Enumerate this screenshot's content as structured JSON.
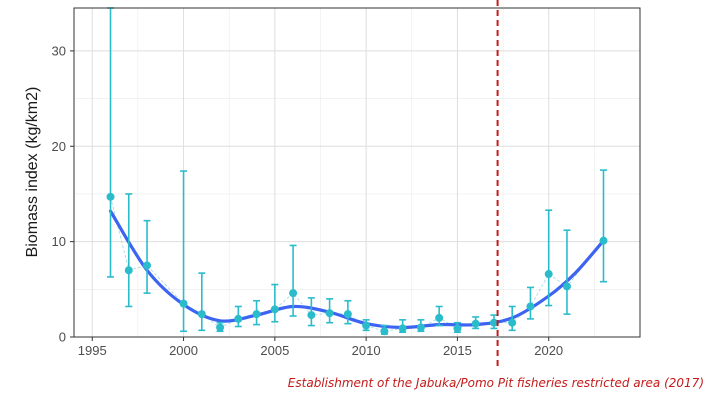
{
  "chart_data": {
    "type": "scatter",
    "ylabel": "Biomass index (kg/km2)",
    "xlabel": "",
    "title": "",
    "xlim": [
      1994,
      2025
    ],
    "ylim": [
      0,
      34.5
    ],
    "x_ticks": [
      1995,
      2000,
      2005,
      2010,
      2015,
      2020
    ],
    "y_ticks": [
      0,
      10,
      20,
      30
    ],
    "grid": true,
    "series": [
      {
        "style": "points-with-error-bars",
        "x": [
          1996,
          1997,
          1998,
          2000,
          2001,
          2002,
          2003,
          2004,
          2005,
          2006,
          2007,
          2008,
          2009,
          2010,
          2011,
          2012,
          2013,
          2014,
          2015,
          2016,
          2017,
          2018,
          2019,
          2020,
          2021,
          2023
        ],
        "y": [
          14.7,
          7.0,
          7.5,
          3.5,
          2.4,
          1.0,
          1.9,
          2.4,
          2.9,
          4.6,
          2.3,
          2.5,
          2.4,
          1.2,
          0.6,
          0.9,
          1.0,
          2.0,
          0.9,
          1.4,
          1.5,
          1.5,
          3.2,
          6.6,
          5.3,
          10.1
        ],
        "lower": [
          6.3,
          3.2,
          4.6,
          0.6,
          0.7,
          0.6,
          1.1,
          1.3,
          1.6,
          2.2,
          1.2,
          1.5,
          1.4,
          0.7,
          0.3,
          0.5,
          0.6,
          1.2,
          0.5,
          0.9,
          0.9,
          0.7,
          1.9,
          3.3,
          2.4,
          5.8
        ],
        "upper": [
          34.5,
          15.0,
          12.2,
          17.4,
          6.7,
          1.5,
          3.2,
          3.8,
          5.5,
          9.6,
          4.1,
          4.0,
          3.8,
          1.8,
          1.2,
          1.8,
          1.8,
          3.2,
          1.5,
          2.1,
          2.3,
          3.2,
          5.2,
          13.3,
          11.2,
          17.5
        ],
        "color": "#2bbccc"
      },
      {
        "style": "smooth-trend",
        "x": [
          1996,
          1998,
          2000,
          2002,
          2004,
          2006,
          2008,
          2010,
          2012,
          2014,
          2016,
          2018,
          2020,
          2021.5,
          2023
        ],
        "y": [
          13.2,
          7.0,
          3.4,
          1.7,
          2.3,
          3.2,
          2.6,
          1.4,
          1.0,
          1.3,
          1.3,
          2.0,
          4.3,
          6.8,
          10.1
        ],
        "color": "#3d63f2"
      }
    ],
    "annotations": [
      {
        "x": 2017.2,
        "style": "vertical-dashed-line",
        "color": "#c41a1a",
        "text": "Establishment of the Jabuka/Pomo Pit fisheries restricted area (2017)"
      }
    ]
  }
}
